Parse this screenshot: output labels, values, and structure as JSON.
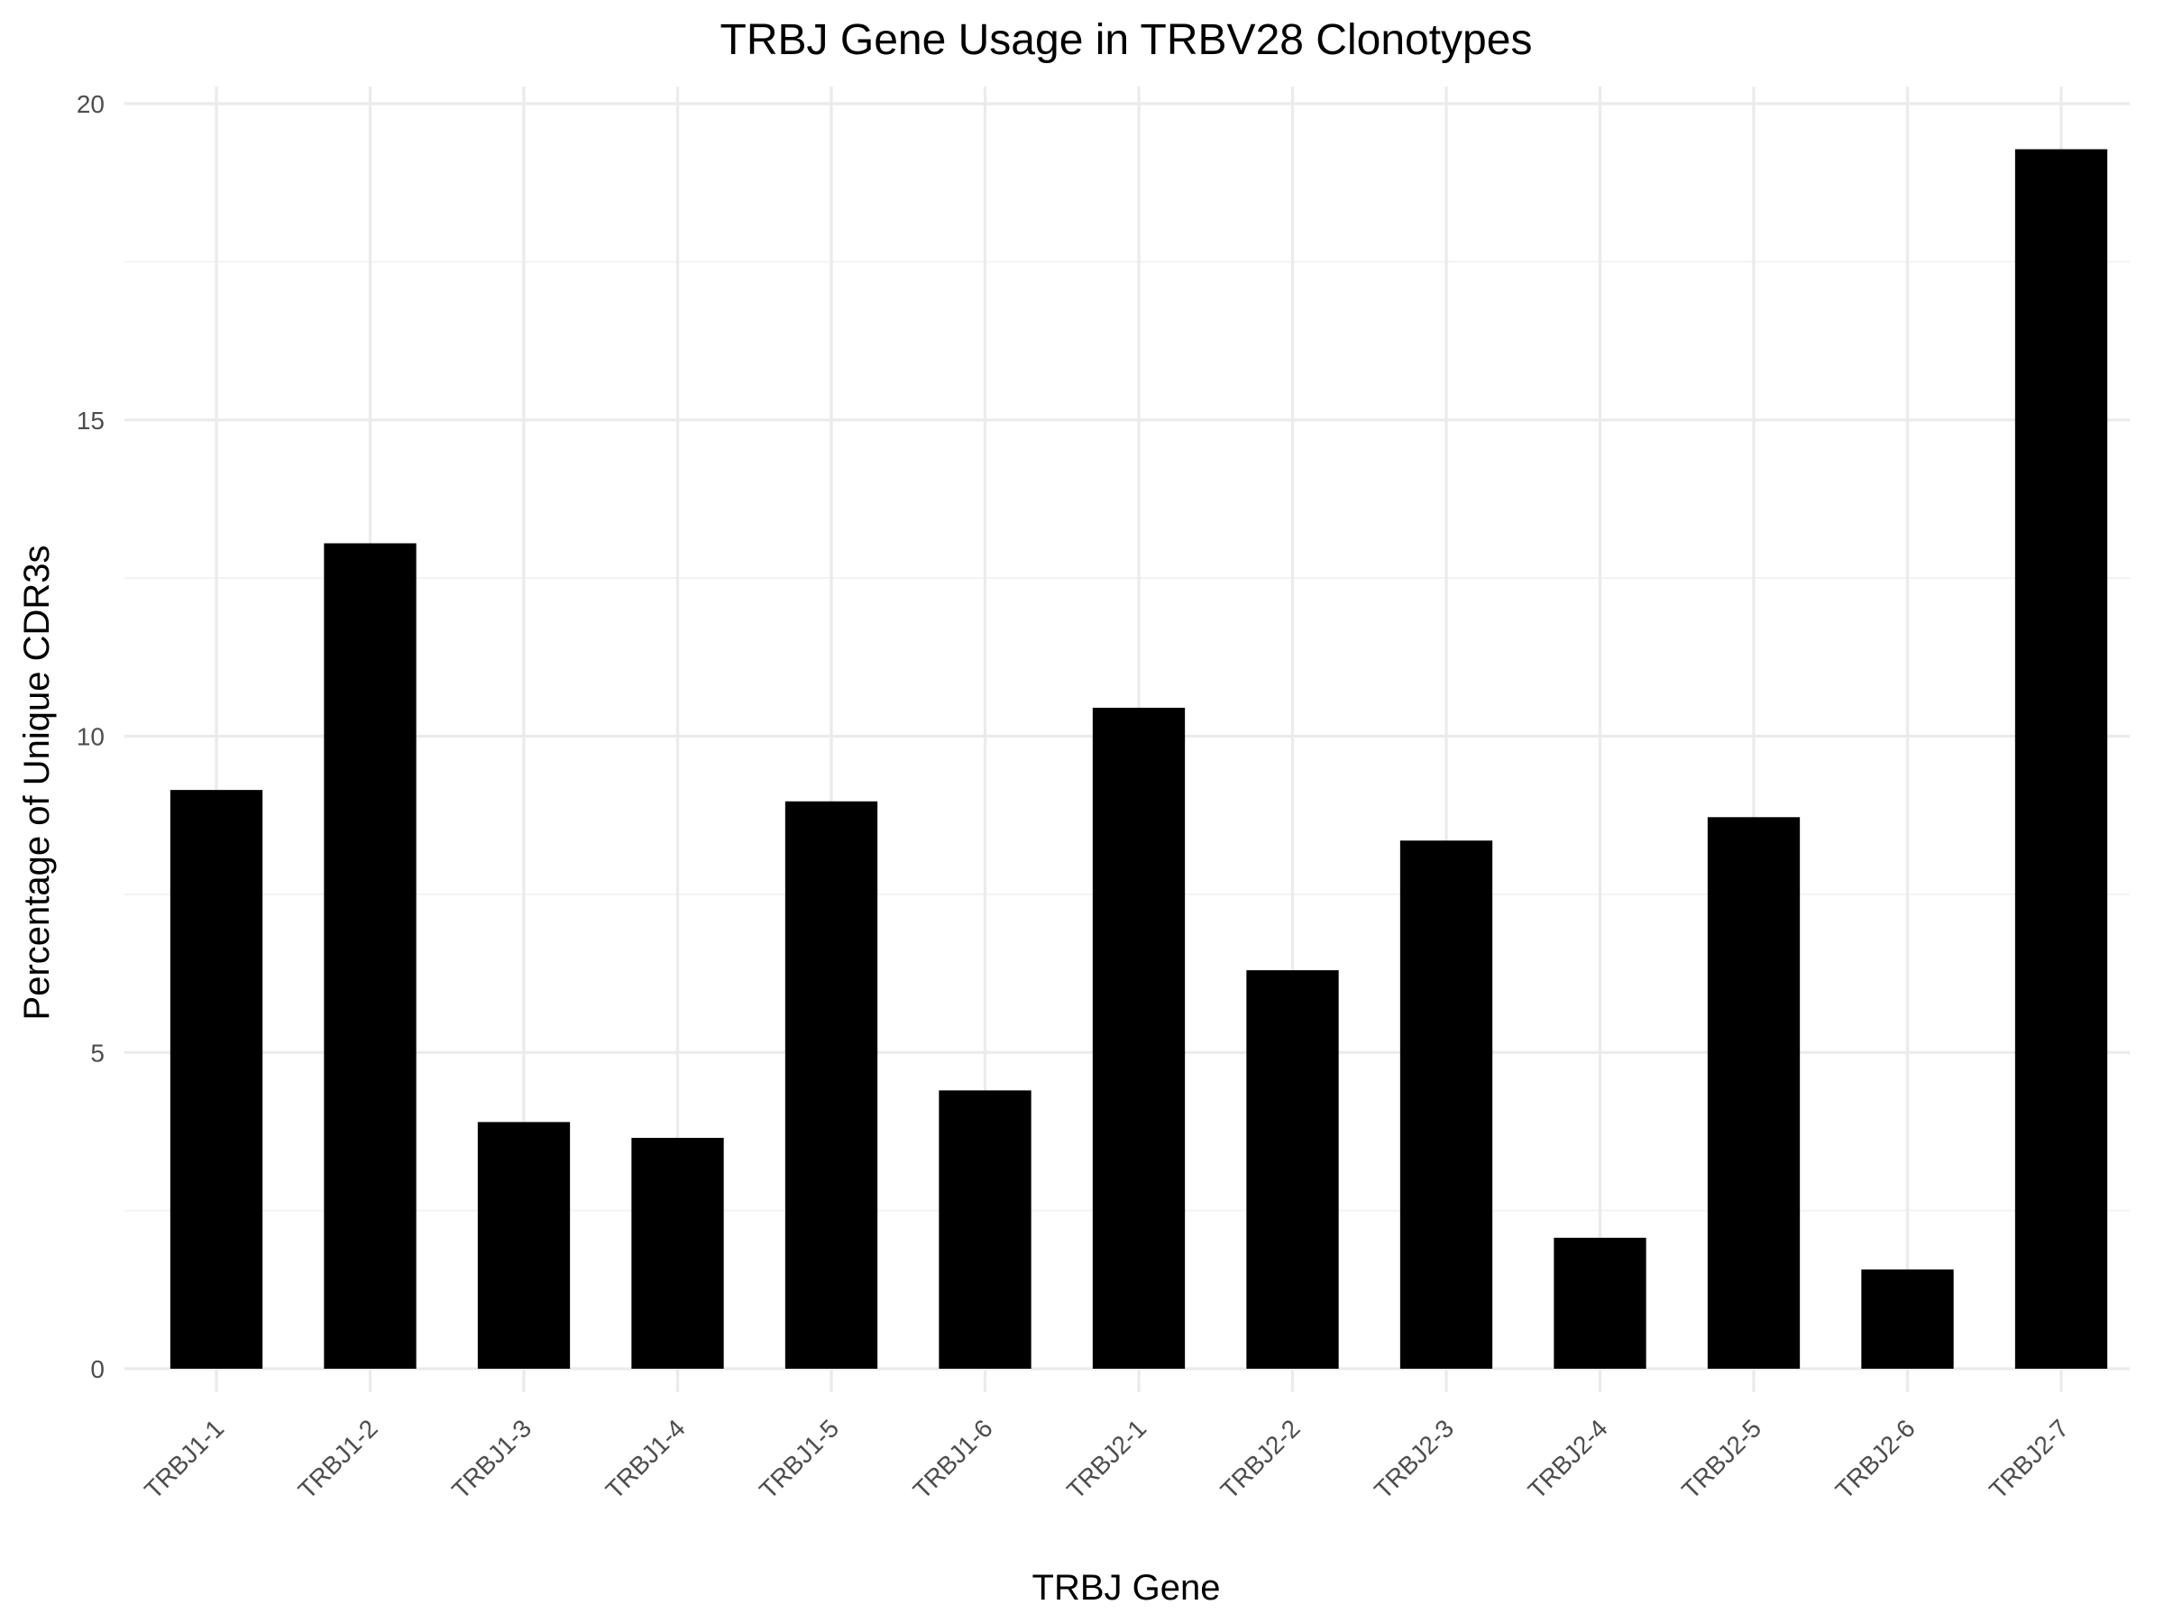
{
  "chart_data": {
    "type": "bar",
    "title": "TRBJ Gene Usage in TRBV28 Clonotypes",
    "xlabel": "TRBJ Gene",
    "ylabel": "Percentage of Unique CDR3s",
    "categories": [
      "TRBJ1-1",
      "TRBJ1-2",
      "TRBJ1-3",
      "TRBJ1-4",
      "TRBJ1-5",
      "TRBJ1-6",
      "TRBJ2-1",
      "TRBJ2-2",
      "TRBJ2-3",
      "TRBJ2-4",
      "TRBJ2-5",
      "TRBJ2-6",
      "TRBJ2-7"
    ],
    "values": [
      9.15,
      13.05,
      3.9,
      3.65,
      8.97,
      4.4,
      10.45,
      6.3,
      8.35,
      2.07,
      8.72,
      1.57,
      19.28
    ],
    "ylim": [
      0,
      20
    ],
    "yticks": [
      0,
      5,
      10,
      15,
      20
    ],
    "ytick_labels": [
      "0",
      "5",
      "10",
      "15",
      "20"
    ],
    "grid": true,
    "bar_color": "#000000",
    "legend": "none"
  }
}
